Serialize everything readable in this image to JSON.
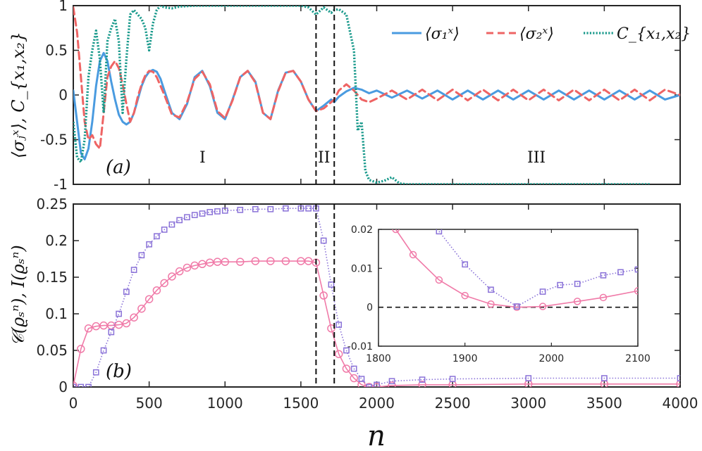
{
  "chart_data": [
    {
      "panel": "(a)",
      "type": "line",
      "xlim": [
        0,
        4000
      ],
      "ylim": [
        -1,
        1
      ],
      "yticks": [
        -1,
        -0.5,
        0,
        0.5,
        1
      ],
      "ytick_labels": [
        "-1",
        "-0.5",
        "0",
        "0.5",
        "1"
      ],
      "ylabel": "⟨σⱼˣ⟩,  C_{x₁,x₂}",
      "vlines": [
        1600,
        1720
      ],
      "region_labels": [
        "I",
        "II",
        "III"
      ],
      "series": [
        {
          "name": "⟨σ₁ˣ⟩",
          "legend": "⟨σ₁ˣ⟩",
          "color": "#4a9be0",
          "style": "solid",
          "x": [
            0,
            25,
            50,
            75,
            100,
            125,
            150,
            175,
            200,
            225,
            250,
            275,
            300,
            325,
            350,
            375,
            400,
            425,
            450,
            475,
            500,
            525,
            550,
            575,
            600,
            650,
            700,
            750,
            800,
            850,
            900,
            950,
            1000,
            1050,
            1100,
            1150,
            1200,
            1250,
            1300,
            1350,
            1400,
            1450,
            1500,
            1550,
            1600,
            1650,
            1700,
            1720,
            1750,
            1800,
            1850,
            1900,
            1950,
            2000,
            2100,
            2200,
            2300,
            2400,
            2500,
            2600,
            2700,
            2800,
            2900,
            3000,
            3100,
            3200,
            3300,
            3400,
            3500,
            3600,
            3700,
            3800,
            3900,
            4000
          ],
          "y": [
            0.05,
            -0.3,
            -0.65,
            -0.72,
            -0.6,
            -0.3,
            0.1,
            0.38,
            0.47,
            0.38,
            0.15,
            -0.05,
            -0.22,
            -0.3,
            -0.33,
            -0.3,
            -0.2,
            -0.05,
            0.1,
            0.2,
            0.26,
            0.28,
            0.26,
            0.18,
            0.05,
            -0.2,
            -0.27,
            -0.1,
            0.2,
            0.27,
            0.1,
            -0.2,
            -0.27,
            -0.05,
            0.2,
            0.27,
            0.15,
            -0.2,
            -0.27,
            0.05,
            0.25,
            0.27,
            0.15,
            -0.05,
            -0.18,
            -0.12,
            -0.05,
            -0.08,
            -0.02,
            0.04,
            0.08,
            0.06,
            0.02,
            0.05,
            -0.03,
            0.05,
            -0.04,
            0.05,
            -0.05,
            0.05,
            -0.05,
            0.05,
            -0.05,
            0.05,
            -0.05,
            0.05,
            -0.05,
            0.05,
            -0.05,
            0.05,
            -0.05,
            0.05,
            -0.05,
            0.0
          ]
        },
        {
          "name": "⟨σ₂ˣ⟩",
          "legend": "⟨σ₂ˣ⟩",
          "color": "#ee6464",
          "style": "dashed",
          "x": [
            0,
            25,
            50,
            75,
            100,
            125,
            150,
            175,
            200,
            225,
            250,
            275,
            300,
            325,
            350,
            375,
            400,
            425,
            450,
            475,
            500,
            525,
            550,
            575,
            600,
            650,
            700,
            750,
            800,
            850,
            900,
            950,
            1000,
            1050,
            1100,
            1150,
            1200,
            1250,
            1300,
            1350,
            1400,
            1450,
            1500,
            1550,
            1600,
            1650,
            1700,
            1720,
            1750,
            1800,
            1850,
            1900,
            1950,
            2000,
            2100,
            2200,
            2300,
            2400,
            2500,
            2600,
            2700,
            2800,
            2900,
            3000,
            3100,
            3200,
            3300,
            3400,
            3500,
            3600,
            3700,
            3800,
            3900,
            4000
          ],
          "y": [
            0.98,
            0.7,
            0.2,
            -0.3,
            -0.5,
            -0.45,
            -0.55,
            -0.6,
            -0.2,
            0.2,
            0.32,
            0.38,
            0.3,
            0.12,
            -0.1,
            -0.3,
            -0.2,
            -0.02,
            0.12,
            0.22,
            0.27,
            0.26,
            0.2,
            0.1,
            0.0,
            -0.22,
            -0.25,
            -0.08,
            0.18,
            0.26,
            0.12,
            -0.18,
            -0.26,
            -0.06,
            0.2,
            0.27,
            0.14,
            -0.2,
            -0.27,
            0.04,
            0.25,
            0.27,
            0.15,
            -0.05,
            -0.18,
            -0.15,
            -0.08,
            -0.05,
            0.05,
            0.12,
            0.05,
            -0.05,
            -0.08,
            -0.04,
            0.05,
            -0.05,
            0.06,
            -0.06,
            0.06,
            -0.06,
            0.06,
            -0.06,
            0.06,
            -0.06,
            0.06,
            -0.06,
            0.06,
            -0.06,
            0.06,
            -0.06,
            0.06,
            -0.06,
            0.06,
            0.0
          ]
        },
        {
          "name": "C_{x₁,x₂}",
          "legend": "C_{x₁,x₂}",
          "color": "#1a9a8c",
          "style": "dotted",
          "x": [
            0,
            25,
            50,
            75,
            100,
            125,
            150,
            175,
            200,
            225,
            250,
            275,
            300,
            325,
            350,
            375,
            400,
            425,
            450,
            475,
            500,
            525,
            550,
            575,
            600,
            650,
            700,
            800,
            900,
            1000,
            1200,
            1400,
            1500,
            1550,
            1600,
            1650,
            1700,
            1720,
            1750,
            1800,
            1850,
            1875,
            1900,
            1925,
            1950,
            2000,
            2050,
            2100,
            2150,
            2200,
            2300,
            2400,
            2600,
            3000,
            3400,
            3800
          ],
          "y": [
            -0.3,
            -0.7,
            -0.75,
            -0.5,
            0.2,
            0.5,
            0.72,
            0.4,
            -0.2,
            0.6,
            0.75,
            0.85,
            0.6,
            -0.2,
            0.4,
            0.9,
            0.95,
            0.9,
            0.85,
            0.75,
            0.5,
            0.8,
            0.95,
            1.0,
            0.98,
            0.97,
            0.99,
            1.0,
            1.0,
            1.0,
            1.0,
            1.0,
            1.0,
            0.98,
            0.9,
            0.98,
            0.92,
            0.95,
            0.96,
            0.9,
            0.5,
            -0.4,
            -0.3,
            -0.85,
            -0.95,
            -0.98,
            -0.96,
            -0.92,
            -0.99,
            -1.0,
            -1.0,
            -1.0,
            -1.0,
            -1.0,
            -1.0,
            -1.0
          ]
        }
      ]
    },
    {
      "panel": "(b)",
      "type": "line",
      "xlim": [
        0,
        4000
      ],
      "ylim": [
        0,
        0.25
      ],
      "xlabel": "n",
      "ylabel": "𝒞(ϱₛⁿ),  I(ϱₛⁿ)",
      "xticks": [
        0,
        500,
        1000,
        1500,
        2000,
        2500,
        3000,
        3500,
        4000
      ],
      "xtick_labels": [
        "0",
        "500",
        "1000",
        "1500",
        "2000",
        "2500",
        "3000",
        "3500",
        "4000"
      ],
      "yticks": [
        0,
        0.05,
        0.1,
        0.15,
        0.2,
        0.25
      ],
      "ytick_labels": [
        "0",
        "0.05",
        "0.1",
        "0.15",
        "0.2",
        "0.25"
      ],
      "vlines": [
        1600,
        1720
      ],
      "series": [
        {
          "name": "𝒞(ϱₛⁿ)",
          "color": "#f07aa8",
          "marker": "circle",
          "x": [
            0,
            50,
            100,
            150,
            200,
            250,
            300,
            350,
            400,
            450,
            500,
            550,
            600,
            650,
            700,
            750,
            800,
            850,
            900,
            950,
            1000,
            1100,
            1200,
            1300,
            1400,
            1500,
            1550,
            1600,
            1650,
            1700,
            1750,
            1800,
            1850,
            1900,
            1950,
            2000,
            2100,
            2300,
            2500,
            3000,
            3500,
            4000
          ],
          "y": [
            0.002,
            0.052,
            0.08,
            0.083,
            0.084,
            0.084,
            0.085,
            0.087,
            0.095,
            0.107,
            0.12,
            0.132,
            0.142,
            0.151,
            0.158,
            0.163,
            0.166,
            0.168,
            0.17,
            0.171,
            0.171,
            0.171,
            0.172,
            0.172,
            0.172,
            0.172,
            0.172,
            0.17,
            0.125,
            0.08,
            0.045,
            0.025,
            0.012,
            0.003,
            0.0,
            0.0,
            0.002,
            0.003,
            0.003,
            0.004,
            0.004,
            0.004
          ]
        },
        {
          "name": "I(ϱₛⁿ)",
          "color": "#8a72d8",
          "marker": "square",
          "x": [
            0,
            50,
            100,
            150,
            200,
            250,
            300,
            350,
            400,
            450,
            500,
            550,
            600,
            650,
            700,
            750,
            800,
            850,
            900,
            950,
            1000,
            1100,
            1200,
            1300,
            1400,
            1500,
            1550,
            1600,
            1650,
            1700,
            1750,
            1800,
            1850,
            1900,
            1950,
            2000,
            2100,
            2300,
            2500,
            3000,
            3500,
            4000
          ],
          "y": [
            0.0,
            0.0,
            0.0,
            0.02,
            0.05,
            0.075,
            0.1,
            0.13,
            0.16,
            0.18,
            0.195,
            0.206,
            0.215,
            0.222,
            0.228,
            0.232,
            0.235,
            0.237,
            0.239,
            0.24,
            0.241,
            0.242,
            0.243,
            0.243,
            0.244,
            0.244,
            0.244,
            0.244,
            0.2,
            0.14,
            0.085,
            0.05,
            0.025,
            0.011,
            0.0,
            0.003,
            0.008,
            0.01,
            0.011,
            0.012,
            0.012,
            0.012
          ]
        }
      ],
      "inset": {
        "xlim": [
          1800,
          2100
        ],
        "ylim": [
          -0.01,
          0.02
        ],
        "xticks": [
          1800,
          1900,
          2000,
          2100
        ],
        "xtick_labels": [
          "1800",
          "1900",
          "2000",
          "2100"
        ],
        "yticks": [
          -0.01,
          0,
          0.01,
          0.02
        ],
        "ytick_labels": [
          "-0.01",
          "0",
          "0.01",
          "0.02"
        ],
        "hline": 0,
        "series": [
          {
            "name": "𝒞(ϱₛⁿ)",
            "color": "#f07aa8",
            "marker": "circle",
            "x": [
              1820,
              1840,
              1870,
              1900,
              1930,
              1960,
              1990,
              2030,
              2060,
              2100
            ],
            "y": [
              0.02,
              0.0135,
              0.007,
              0.003,
              0.0008,
              0.0,
              0.0002,
              0.0015,
              0.0025,
              0.0042
            ]
          },
          {
            "name": "I(ϱₛⁿ)",
            "color": "#8a72d8",
            "marker": "square",
            "x": [
              1870,
              1900,
              1930,
              1960,
              1990,
              2010,
              2030,
              2060,
              2080,
              2100
            ],
            "y": [
              0.0195,
              0.011,
              0.0045,
              0.0002,
              0.004,
              0.0057,
              0.006,
              0.0082,
              0.009,
              0.0097
            ]
          }
        ]
      }
    }
  ]
}
